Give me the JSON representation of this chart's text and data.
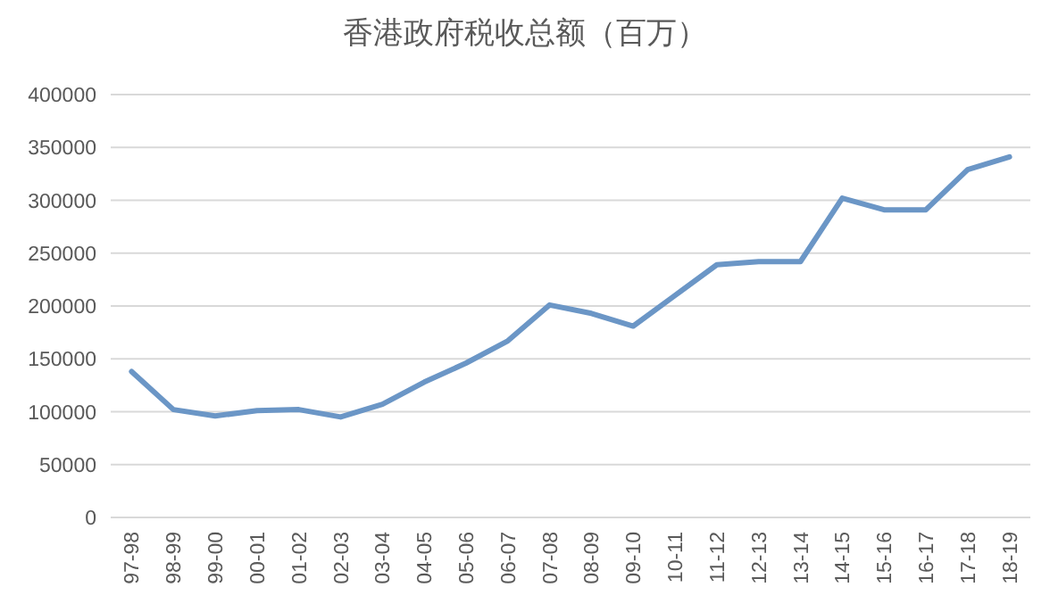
{
  "chart_data": {
    "type": "line",
    "title": "香港政府税收总额（百万）",
    "categories": [
      "97-98",
      "98-99",
      "99-00",
      "00-01",
      "01-02",
      "02-03",
      "03-04",
      "04-05",
      "05-06",
      "06-07",
      "07-08",
      "08-09",
      "09-10",
      "10-11",
      "11-12",
      "12-13",
      "13-14",
      "14-15",
      "15-16",
      "16-17",
      "17-18",
      "18-19"
    ],
    "series": [
      {
        "color": "#6b96c6",
        "values": [
          138000,
          102000,
          96000,
          101000,
          102000,
          95000,
          107000,
          128000,
          146000,
          167000,
          201000,
          193000,
          181000,
          210000,
          239000,
          242000,
          242000,
          302000,
          291000,
          291000,
          329000,
          341000
        ]
      }
    ],
    "ylim": [
      0,
      400000
    ],
    "yticks": [
      0,
      50000,
      100000,
      150000,
      200000,
      250000,
      300000,
      350000,
      400000
    ],
    "grid": "y",
    "marker": "none",
    "line_style": "solid"
  }
}
